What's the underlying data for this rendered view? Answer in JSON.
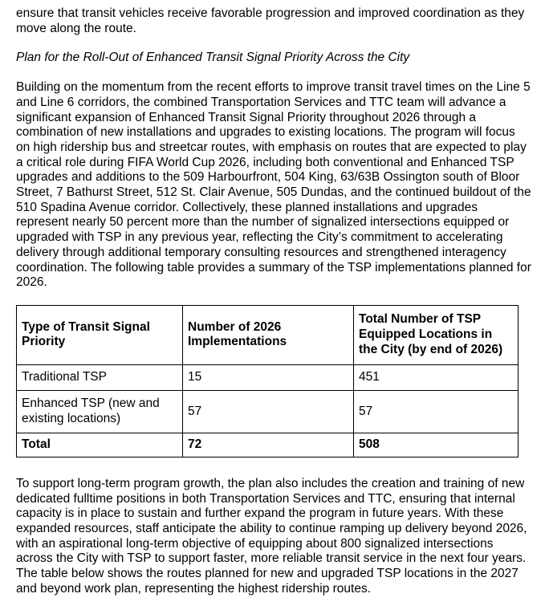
{
  "page": {
    "background_color": "#ffffff",
    "text_color": "#000000",
    "table_border_color": "#000000"
  },
  "document": {
    "intro_paragraph": "ensure that transit vehicles receive favorable progression and improved coordination as they move along the route.",
    "section_heading": "Plan for the Roll-Out of Enhanced Transit Signal Priority Across the City",
    "body_paragraph": "Building on the momentum from the recent efforts to improve transit travel times on the Line 5 and Line 6 corridors, the combined Transportation Services and TTC team will advance a significant expansion of Enhanced Transit Signal Priority throughout 2026 through a combination of new installations and upgrades to existing locations. The program will focus on high ridership bus and streetcar routes, with emphasis on routes that are expected to play a critical role during FIFA World Cup 2026, including both conventional and Enhanced TSP upgrades and additions to the 509 Harbourfront, 504 King, 63/63B Ossington south of Bloor Street, 7 Bathurst Street, 512 St. Clair Avenue, 505 Dundas, and the continued buildout of the 510 Spadina Avenue corridor. Collectively, these planned installations and upgrades represent nearly 50 percent more than the number of signalized intersections equipped or upgraded with TSP in any previous year, reflecting the City’s commitment to accelerating delivery through additional temporary consulting resources and strengthened interagency coordination. The following table provides a summary of the TSP implementations planned for 2026.",
    "closing_paragraph": "To support long-term program growth, the plan also includes the creation and training of new dedicated fulltime positions in both Transportation Services and TTC, ensuring that internal capacity is in place to sustain and further expand the program in future years. With these expanded resources, staff anticipate the ability to continue ramping up delivery beyond 2026, with an aspirational long-term objective of equipping about 800 signalized intersections across the City with TSP to support faster, more reliable transit service in the next four years. The table below shows the routes planned for new and upgraded TSP locations in the 2027 and beyond work plan, representing the highest ridership routes."
  },
  "table": {
    "headers": [
      "Type of Transit Signal Priority",
      "Number of 2026 Implementations",
      "Total Number of TSP Equipped Locations in the City (by end of 2026)"
    ],
    "rows": [
      [
        "Traditional TSP",
        "15",
        "451"
      ],
      [
        "Enhanced TSP (new and existing locations)",
        "57",
        "57"
      ],
      [
        "Total",
        "72",
        "508"
      ]
    ]
  }
}
